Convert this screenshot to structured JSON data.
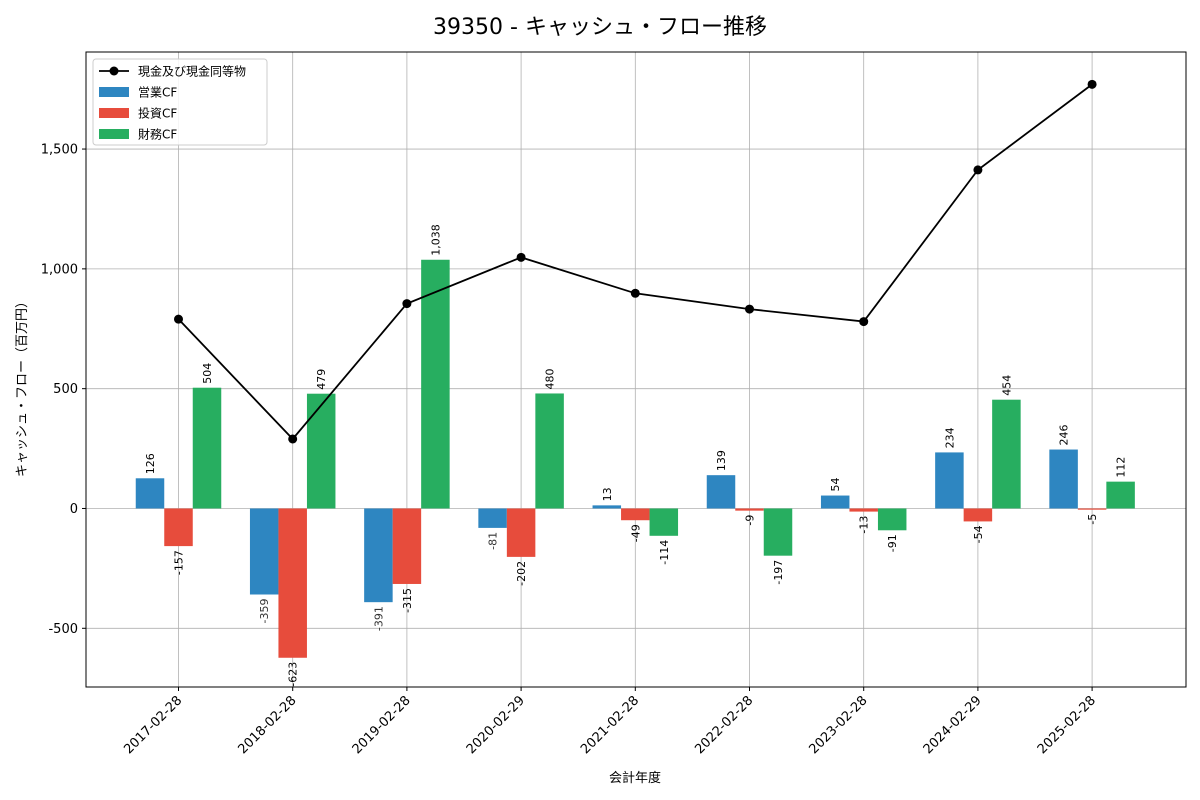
{
  "chart_data": {
    "type": "bar",
    "title": "39350 - キャッシュ・フロー推移",
    "xlabel": "会計年度",
    "ylabel": "キャッシュ・フロー（百万円）",
    "categories": [
      "2017-02-28",
      "2018-02-28",
      "2019-02-28",
      "2020-02-29",
      "2021-02-28",
      "2022-02-28",
      "2023-02-28",
      "2024-02-29",
      "2025-02-28"
    ],
    "series": [
      {
        "name": "営業CF",
        "type": "bar",
        "color": "#2e86c1",
        "values": [
          126,
          -359,
          -391,
          -81,
          13,
          139,
          54,
          234,
          246
        ],
        "labels": [
          "126",
          "-359",
          "-391",
          "-81",
          "13",
          "139",
          "54",
          "234",
          "246"
        ]
      },
      {
        "name": "投資CF",
        "type": "bar",
        "color": "#e74c3c",
        "values": [
          -157,
          -623,
          -315,
          -202,
          -49,
          -9,
          -13,
          -54,
          -5
        ],
        "labels": [
          "-157",
          "-623",
          "-315",
          "-202",
          "-49",
          "-9",
          "-13",
          "-54",
          "-5"
        ]
      },
      {
        "name": "財務CF",
        "type": "bar",
        "color": "#27ae60",
        "values": [
          504,
          479,
          1038,
          480,
          -114,
          -197,
          -91,
          454,
          112
        ],
        "labels": [
          "504",
          "479",
          "1,038",
          "480",
          "-114",
          "-197",
          "-91",
          "454",
          "112"
        ]
      },
      {
        "name": "現金及び現金同等物",
        "type": "line",
        "color": "#000000",
        "values": [
          790,
          290,
          855,
          1048,
          898,
          832,
          780,
          1413,
          1770
        ]
      }
    ],
    "yticks": [
      -500,
      0,
      500,
      1000,
      1500
    ],
    "ytick_labels": [
      "-500",
      "0",
      "500",
      "1,000",
      "1,500"
    ],
    "ylim": [
      -745,
      1905
    ],
    "grid": true,
    "legend_position": "top-left"
  }
}
